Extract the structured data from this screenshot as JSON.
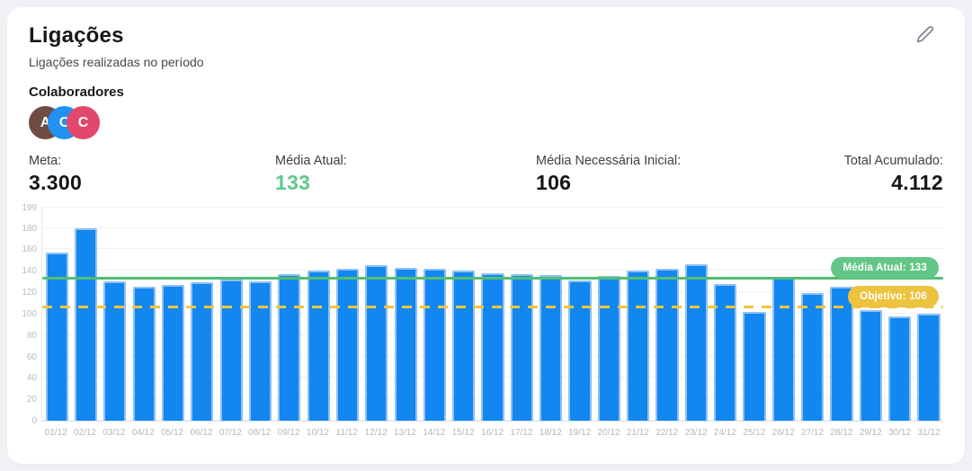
{
  "card": {
    "title": "Ligações",
    "subtitle": "Ligações realizadas no período",
    "collaborators_label": "Colaboradores",
    "avatars": [
      {
        "initial": "A",
        "color": "#6e4c41"
      },
      {
        "initial": "C",
        "color": "#2191f2"
      },
      {
        "initial": "C",
        "color": "#e2486b"
      }
    ],
    "stats": [
      {
        "label": "Meta:",
        "value": "3.300"
      },
      {
        "label": "Média Atual:",
        "value": "133"
      },
      {
        "label": "Média Necessária Inicial:",
        "value": "106"
      },
      {
        "label": "Total Acumulado:",
        "value": "4.112"
      }
    ]
  },
  "chart_data": {
    "type": "bar",
    "title": "Ligações realizadas no período",
    "categories": [
      "01/12",
      "02/12",
      "03/12",
      "04/12",
      "05/12",
      "06/12",
      "07/12",
      "08/12",
      "09/12",
      "10/12",
      "11/12",
      "12/12",
      "13/12",
      "14/12",
      "15/12",
      "16/12",
      "17/12",
      "18/12",
      "19/12",
      "20/12",
      "21/12",
      "22/12",
      "23/12",
      "24/12",
      "25/12",
      "26/12",
      "27/12",
      "28/12",
      "29/12",
      "30/12",
      "31/12"
    ],
    "values": [
      157,
      180,
      130,
      125,
      127,
      129,
      132,
      130,
      137,
      140,
      142,
      145,
      143,
      142,
      140,
      138,
      137,
      136,
      131,
      135,
      140,
      142,
      146,
      128,
      102,
      134,
      119,
      125,
      103,
      97,
      100
    ],
    "xlabel": "",
    "ylabel": "",
    "ylim": [
      0,
      199
    ],
    "yticks": [
      199,
      180,
      160,
      140,
      120,
      100,
      80,
      60,
      40,
      20,
      0
    ],
    "grid": "horizontal",
    "legend": "none",
    "bar_color": "#1287f0",
    "reference_lines": [
      {
        "label": "Média Atual: 133",
        "value": 133,
        "line_color": "#52bd74",
        "pill_color": "#63c687",
        "style": "solid"
      },
      {
        "label": "Objetivo: 106",
        "value": 106,
        "line_color": "#f1c53c",
        "pill_color": "#edc23e",
        "style": "dashed"
      }
    ]
  }
}
